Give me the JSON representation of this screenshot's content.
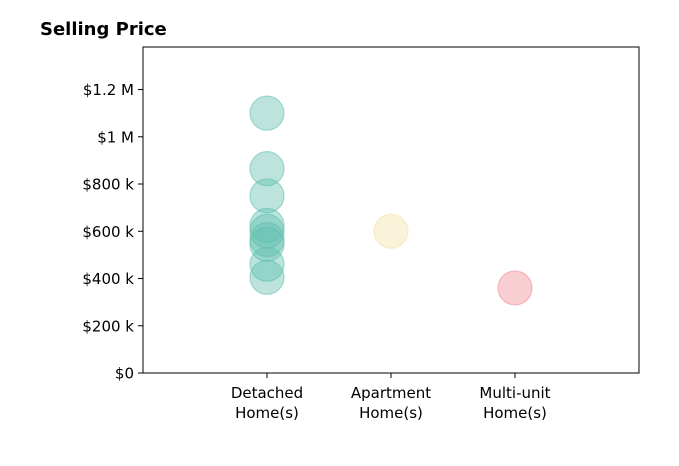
{
  "chart_data": {
    "type": "scatter",
    "title": "Selling Price",
    "xlabel": "",
    "ylabel": "",
    "categories": [
      [
        "Detached",
        "Home(s)"
      ],
      [
        "Apartment",
        "Home(s)"
      ],
      [
        "Multi-unit",
        "Home(s)"
      ]
    ],
    "yticks": [
      {
        "value": 0,
        "label": "$0"
      },
      {
        "value": 200000,
        "label": "$200 k"
      },
      {
        "value": 400000,
        "label": "$400 k"
      },
      {
        "value": 600000,
        "label": "$600 k"
      },
      {
        "value": 800000,
        "label": "$800 k"
      },
      {
        "value": 1000000,
        "label": "$1 M"
      },
      {
        "value": 1200000,
        "label": "$1.2 M"
      }
    ],
    "xlim": [
      -1,
      3
    ],
    "ylim": [
      0,
      1380000
    ],
    "grid": false,
    "series": [
      {
        "category_index": 0,
        "color": "#5fbfae",
        "values": [
          1100000,
          865000,
          750000,
          625000,
          600000,
          565000,
          545000,
          460000,
          405000
        ]
      },
      {
        "category_index": 1,
        "color": "#f5dfa8",
        "values": [
          600000
        ]
      },
      {
        "category_index": 2,
        "color": "#f08b95",
        "values": [
          360000
        ]
      }
    ]
  }
}
